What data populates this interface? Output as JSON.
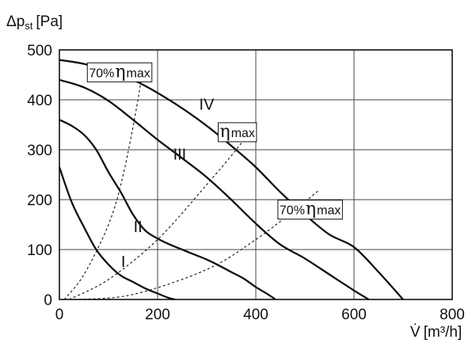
{
  "chart_data": {
    "type": "line",
    "xlabel_main": "V̇",
    "xlabel_unit": "[m³/h]",
    "ylabel_main": "Δp",
    "ylabel_sub": "st",
    "ylabel_unit": "[Pa]",
    "xlim": [
      0,
      800
    ],
    "ylim": [
      0,
      500
    ],
    "xticks": [
      0,
      200,
      400,
      600,
      800
    ],
    "yticks": [
      0,
      100,
      200,
      300,
      400,
      500
    ],
    "grid": true,
    "series": [
      {
        "name": "I",
        "x": [
          0,
          25,
          50,
          75,
          100,
          125,
          150,
          175,
          200,
          220,
          235
        ],
        "y": [
          265,
          195,
          145,
          100,
          70,
          48,
          35,
          22,
          12,
          4,
          0
        ]
      },
      {
        "name": "II",
        "x": [
          0,
          25,
          50,
          75,
          100,
          125,
          150,
          175,
          200,
          225,
          250,
          275,
          300,
          325,
          350,
          375,
          400,
          425,
          440
        ],
        "y": [
          360,
          348,
          330,
          300,
          255,
          215,
          170,
          138,
          122,
          110,
          100,
          90,
          80,
          68,
          55,
          42,
          25,
          10,
          0
        ]
      },
      {
        "name": "III",
        "x": [
          0,
          50,
          100,
          150,
          200,
          250,
          300,
          350,
          400,
          450,
          500,
          550,
          600,
          630
        ],
        "y": [
          440,
          425,
          398,
          360,
          320,
          283,
          245,
          200,
          152,
          110,
          82,
          50,
          18,
          0
        ]
      },
      {
        "name": "IV",
        "x": [
          0,
          50,
          100,
          150,
          200,
          250,
          300,
          350,
          400,
          450,
          500,
          550,
          600,
          650,
          700
        ],
        "y": [
          480,
          472,
          458,
          440,
          414,
          383,
          348,
          308,
          265,
          215,
          170,
          130,
          105,
          55,
          0
        ]
      }
    ],
    "reference_curves": [
      {
        "label_pct": "70%",
        "label_sym": "η",
        "label_sub": "max",
        "x": [
          10,
          50,
          100,
          130,
          160,
          170
        ],
        "y": [
          0,
          50,
          150,
          250,
          400,
          470
        ]
      },
      {
        "label_pct": "",
        "label_sym": "η",
        "label_sub": "max",
        "x": [
          20,
          100,
          200,
          300,
          360,
          390
        ],
        "y": [
          0,
          40,
          120,
          230,
          300,
          340
        ]
      },
      {
        "label_pct": "70%",
        "label_sym": "η",
        "label_sub": "max",
        "x": [
          40,
          150,
          300,
          400,
          480,
          530
        ],
        "y": [
          0,
          10,
          60,
          120,
          180,
          220
        ]
      }
    ]
  }
}
